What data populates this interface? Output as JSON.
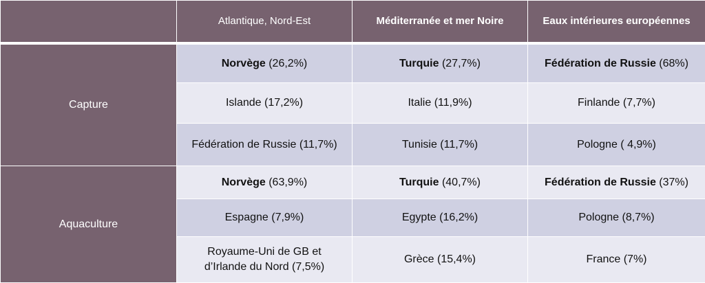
{
  "table": {
    "headers": [
      "",
      "Atlantique, Nord-Est",
      "Méditerranée et mer Noire",
      "Eaux intérieures européennes"
    ],
    "groups": [
      {
        "label": "Capture",
        "rows": [
          [
            {
              "country": "Norvège",
              "value": " (26,2%)"
            },
            {
              "country": "Turquie",
              "value": " (27,7%)"
            },
            {
              "country": "Fédération de Russie",
              "value": " (68%)"
            }
          ],
          [
            {
              "country": "",
              "value": "Islande (17,2%)"
            },
            {
              "country": "",
              "value": "Italie (11,9%)"
            },
            {
              "country": "",
              "value": "Finlande (7,7%)"
            }
          ],
          [
            {
              "country": "",
              "value": "Fédération de Russie (11,7%)"
            },
            {
              "country": "",
              "value": "Tunisie (11,7%)"
            },
            {
              "country": "",
              "value": "Pologne ( 4,9%)"
            }
          ]
        ]
      },
      {
        "label": "Aquaculture",
        "rows": [
          [
            {
              "country": "Norvège",
              "value": " (63,9%)"
            },
            {
              "country": "Turquie",
              "value": " (40,7%)"
            },
            {
              "country": "Fédération de Russie",
              "value": " (37%)"
            }
          ],
          [
            {
              "country": "",
              "value": "Espagne (7,9%)"
            },
            {
              "country": "",
              "value": "Egypte (16,2%)"
            },
            {
              "country": "",
              "value": "Pologne (8,7%)"
            }
          ],
          [
            {
              "country": "",
              "value": "Royaume-Uni de GB et"
            },
            {
              "country": "",
              "value": "Grèce (15,4%)"
            },
            {
              "country": "",
              "value": "France (7%)"
            }
          ]
        ],
        "last_row_line2": "d’Irlande du Nord (7,5%)"
      }
    ]
  },
  "colors": {
    "header_bg": "#77626f",
    "row_dark": "#cfd0e2",
    "row_light": "#e9e9f2",
    "border": "#ffffff"
  }
}
